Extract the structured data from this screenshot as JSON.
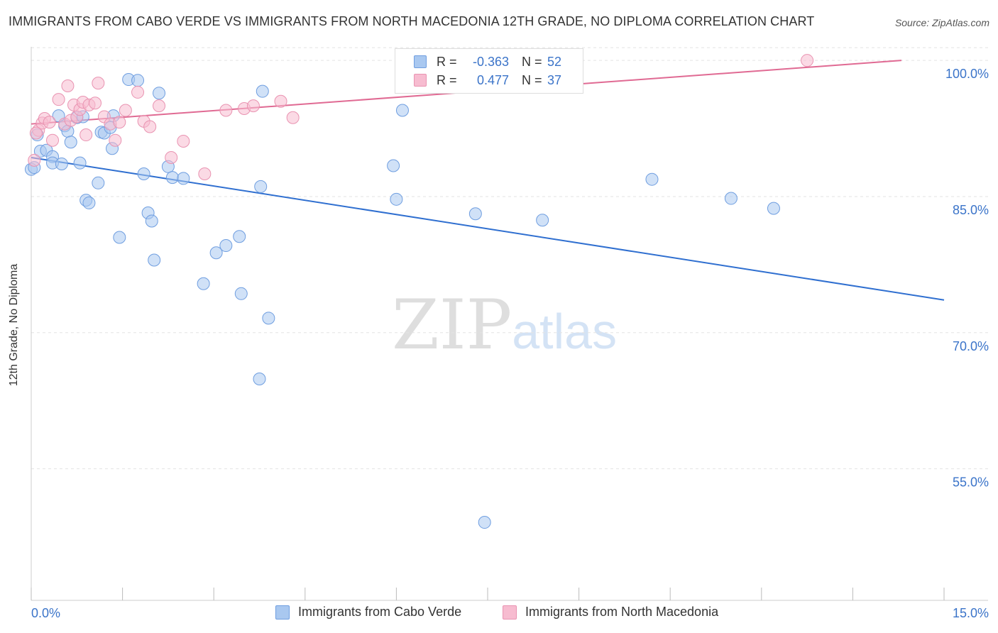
{
  "header": {
    "title": "IMMIGRANTS FROM CABO VERDE VS IMMIGRANTS FROM NORTH MACEDONIA 12TH GRADE, NO DIPLOMA CORRELATION CHART",
    "source": "Source: ZipAtlas.com"
  },
  "watermark": {
    "zip": "ZIP",
    "atlas": "atlas"
  },
  "legend": {
    "rows": [
      {
        "r_label": "R =",
        "r_value": "-0.363",
        "n_label": "N =",
        "n_value": "52",
        "color": "#a9c8f0",
        "border": "#6f9ee0"
      },
      {
        "r_label": "R =",
        "r_value": "0.477",
        "n_label": "N =",
        "n_value": "37",
        "color": "#f7bcd0",
        "border": "#e993b1"
      }
    ]
  },
  "colors": {
    "blue_fill": "#a9c8f0",
    "blue_stroke": "#6f9ee0",
    "blue_line": "#2f6fd0",
    "pink_fill": "#f7bcd0",
    "pink_stroke": "#e993b1",
    "pink_line": "#e06a93",
    "tick_label": "#3b74c9",
    "grid": "#e3e3e3"
  },
  "chart_data": {
    "type": "scatter",
    "title": "IMMIGRANTS FROM CABO VERDE VS IMMIGRANTS FROM NORTH MACEDONIA 12TH GRADE, NO DIPLOMA CORRELATION CHART",
    "xlabel": "",
    "ylabel": "12th Grade, No Diploma",
    "xlim": [
      0,
      15
    ],
    "ylim": [
      40.5,
      101.5
    ],
    "x_tick_labels": [
      "0.0%",
      "15.0%"
    ],
    "y_tick_values": [
      55,
      70,
      85,
      100
    ],
    "y_tick_labels": [
      "55.0%",
      "70.0%",
      "85.0%",
      "100.0%"
    ],
    "grid": true,
    "legend_position": "bottom-center",
    "series": [
      {
        "name": "Immigrants from Cabo Verde",
        "color": "#a9c8f0",
        "trend": {
          "x": [
            0,
            15
          ],
          "y": [
            89.3,
            73.6
          ]
        },
        "points": [
          [
            0.0,
            88.0
          ],
          [
            0.1,
            91.8
          ],
          [
            0.15,
            90.0
          ],
          [
            0.25,
            90.1
          ],
          [
            0.35,
            89.4
          ],
          [
            0.35,
            88.7
          ],
          [
            0.45,
            93.9
          ],
          [
            0.5,
            88.6
          ],
          [
            0.55,
            92.8
          ],
          [
            0.6,
            92.2
          ],
          [
            0.65,
            91.0
          ],
          [
            0.75,
            93.7
          ],
          [
            0.8,
            88.7
          ],
          [
            0.85,
            93.8
          ],
          [
            0.9,
            84.6
          ],
          [
            0.95,
            84.3
          ],
          [
            1.1,
            86.5
          ],
          [
            1.15,
            92.1
          ],
          [
            1.2,
            92.0
          ],
          [
            1.3,
            92.6
          ],
          [
            1.33,
            90.3
          ],
          [
            1.35,
            93.9
          ],
          [
            1.45,
            80.5
          ],
          [
            1.6,
            97.9
          ],
          [
            1.75,
            97.8
          ],
          [
            1.85,
            87.5
          ],
          [
            1.92,
            83.2
          ],
          [
            1.98,
            82.3
          ],
          [
            2.02,
            78.0
          ],
          [
            2.1,
            96.4
          ],
          [
            2.25,
            88.3
          ],
          [
            2.32,
            87.1
          ],
          [
            2.5,
            87.0
          ],
          [
            2.83,
            75.4
          ],
          [
            3.04,
            78.8
          ],
          [
            3.2,
            79.6
          ],
          [
            3.42,
            80.6
          ],
          [
            3.45,
            74.3
          ],
          [
            3.77,
            86.1
          ],
          [
            3.8,
            96.6
          ],
          [
            3.9,
            71.6
          ],
          [
            3.75,
            64.9
          ],
          [
            5.95,
            88.4
          ],
          [
            6.0,
            84.7
          ],
          [
            6.1,
            94.5
          ],
          [
            7.3,
            83.1
          ],
          [
            7.45,
            49.1
          ],
          [
            8.4,
            82.4
          ],
          [
            10.2,
            86.9
          ],
          [
            11.5,
            84.8
          ],
          [
            12.2,
            83.7
          ],
          [
            0.05,
            88.2
          ]
        ]
      },
      {
        "name": "Immigrants from North Macedonia",
        "color": "#f7bcd0",
        "trend": {
          "x": [
            0,
            14.3
          ],
          "y": [
            93.0,
            100.0
          ]
        },
        "points": [
          [
            0.05,
            89.0
          ],
          [
            0.12,
            92.3
          ],
          [
            0.18,
            93.1
          ],
          [
            0.22,
            93.6
          ],
          [
            0.3,
            93.2
          ],
          [
            0.35,
            91.2
          ],
          [
            0.45,
            95.7
          ],
          [
            0.55,
            93.0
          ],
          [
            0.6,
            97.2
          ],
          [
            0.65,
            93.4
          ],
          [
            0.7,
            95.1
          ],
          [
            0.75,
            93.8
          ],
          [
            0.8,
            94.6
          ],
          [
            0.85,
            95.4
          ],
          [
            0.9,
            91.8
          ],
          [
            0.95,
            95.1
          ],
          [
            1.05,
            95.3
          ],
          [
            1.1,
            97.5
          ],
          [
            1.2,
            93.8
          ],
          [
            1.3,
            93.0
          ],
          [
            1.38,
            91.2
          ],
          [
            1.45,
            93.2
          ],
          [
            1.55,
            94.5
          ],
          [
            1.75,
            96.5
          ],
          [
            1.85,
            93.3
          ],
          [
            1.95,
            92.7
          ],
          [
            2.1,
            95.0
          ],
          [
            2.3,
            89.3
          ],
          [
            2.5,
            91.1
          ],
          [
            2.85,
            87.5
          ],
          [
            3.2,
            94.5
          ],
          [
            3.5,
            94.7
          ],
          [
            3.65,
            95.0
          ],
          [
            4.1,
            95.5
          ],
          [
            4.3,
            93.7
          ],
          [
            12.75,
            100.0
          ],
          [
            0.08,
            92.0
          ]
        ]
      }
    ]
  }
}
